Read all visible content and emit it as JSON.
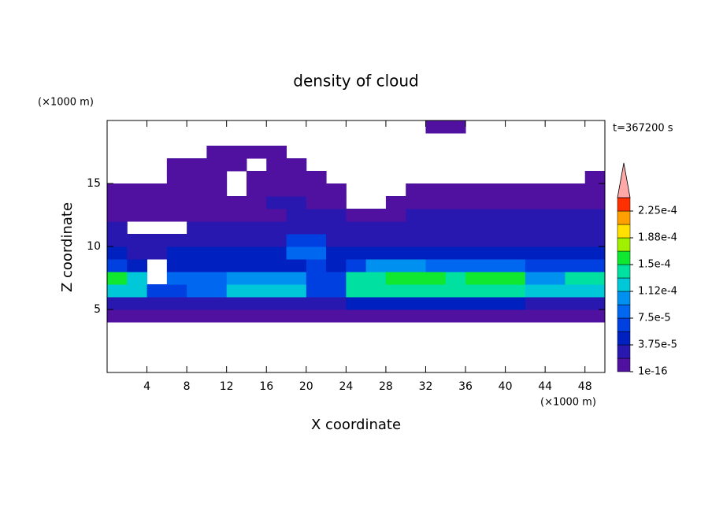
{
  "chart_data": {
    "type": "heatmap",
    "title": "density of cloud",
    "x_label": "X coordinate",
    "y_label": "Z coordinate",
    "x_unit": "(×1000 m)",
    "y_unit": "(×1000 m)",
    "time_label": "t=367200 s",
    "xlim": [
      0,
      50
    ],
    "ylim": [
      0,
      20
    ],
    "xticks": [
      4,
      8,
      12,
      16,
      20,
      24,
      28,
      32,
      36,
      40,
      44,
      48
    ],
    "yticks": [
      5,
      10,
      15
    ],
    "x": [
      1,
      3,
      5,
      7,
      9,
      11,
      13,
      15,
      17,
      19,
      21,
      23,
      25,
      27,
      29,
      31,
      33,
      35,
      37,
      39,
      41,
      43,
      45,
      47,
      49
    ],
    "y": [
      4.5,
      5.5,
      6.5,
      7.5,
      8.5,
      9.5,
      10.5,
      11.5,
      12.5,
      13.5,
      14.5,
      15.5,
      16.5,
      17.5,
      18.5,
      19.5
    ],
    "z": [
      [
        1e-05,
        1e-05,
        1e-05,
        1e-05,
        1e-05,
        1e-05,
        1e-05,
        1e-05,
        1e-05,
        1e-05,
        1e-05,
        1e-05,
        1e-05,
        1e-05,
        1e-05,
        1e-05,
        1e-05,
        1e-05,
        1e-05,
        1e-05,
        1e-05,
        1e-05,
        1e-05,
        1e-05,
        1e-05
      ],
      [
        3e-05,
        3e-05,
        3e-05,
        3e-05,
        3e-05,
        3e-05,
        3e-05,
        3e-05,
        3e-05,
        3e-05,
        2e-05,
        2e-05,
        4e-05,
        4e-05,
        4e-05,
        4e-05,
        4e-05,
        4e-05,
        4e-05,
        4e-05,
        4e-05,
        3e-05,
        3e-05,
        3e-05,
        3e-05
      ],
      [
        0.00012,
        0.00012,
        6e-05,
        6e-05,
        9e-05,
        9e-05,
        0.00013,
        0.00013,
        0.00013,
        0.00013,
        6e-05,
        6e-05,
        0.00014,
        0.00014,
        0.00014,
        0.00014,
        0.00014,
        0.00014,
        0.00014,
        0.00014,
        0.00014,
        0.00013,
        0.00013,
        0.00013,
        0.00013
      ],
      [
        0.00015,
        0.00012,
        null,
        9e-05,
        8e-05,
        8e-05,
        0.00011,
        0.00011,
        0.00011,
        0.00011,
        7e-05,
        7e-05,
        0.00014,
        0.00014,
        0.000165,
        0.000165,
        0.000165,
        0.00014,
        0.000155,
        0.000155,
        0.000155,
        0.00011,
        0.00011,
        0.00014,
        0.00014
      ],
      [
        6e-05,
        5e-05,
        null,
        5e-05,
        5e-05,
        5e-05,
        5e-05,
        5e-05,
        5e-05,
        5e-05,
        7e-05,
        5e-05,
        7e-05,
        0.00011,
        0.00011,
        0.00011,
        8e-05,
        8e-05,
        9e-05,
        9e-05,
        9e-05,
        6e-05,
        6e-05,
        7e-05,
        7e-05
      ],
      [
        4e-05,
        3e-05,
        3e-05,
        4e-05,
        4e-05,
        4e-05,
        4e-05,
        4e-05,
        4e-05,
        8e-05,
        8e-05,
        4e-05,
        4e-05,
        4e-05,
        4e-05,
        4e-05,
        4e-05,
        4e-05,
        4e-05,
        4e-05,
        4e-05,
        4e-05,
        4e-05,
        4e-05,
        4e-05
      ],
      [
        3e-05,
        3e-05,
        3e-05,
        3e-05,
        3e-05,
        3e-05,
        3e-05,
        3e-05,
        3e-05,
        6e-05,
        6e-05,
        3e-05,
        3e-05,
        3e-05,
        3e-05,
        3e-05,
        3e-05,
        3e-05,
        3e-05,
        3e-05,
        3e-05,
        3e-05,
        3e-05,
        3e-05,
        3e-05
      ],
      [
        2e-05,
        null,
        null,
        null,
        2e-05,
        2e-05,
        2e-05,
        2e-05,
        2e-05,
        3e-05,
        3e-05,
        2e-05,
        2e-05,
        2e-05,
        2e-05,
        2e-05,
        2e-05,
        2e-05,
        2e-05,
        2e-05,
        2e-05,
        2e-05,
        2e-05,
        2e-05,
        2e-05
      ],
      [
        1e-05,
        1e-05,
        1e-05,
        1e-05,
        1e-05,
        1e-05,
        1e-05,
        1e-05,
        1e-05,
        2.5e-05,
        2.5e-05,
        2.5e-05,
        1e-05,
        1e-05,
        1e-05,
        2.5e-05,
        2.5e-05,
        2.5e-05,
        2.5e-05,
        2.5e-05,
        2.5e-05,
        2.5e-05,
        2.5e-05,
        2.5e-05,
        2.5e-05
      ],
      [
        1e-05,
        1e-05,
        1e-05,
        1e-05,
        1e-05,
        1e-05,
        1e-05,
        1e-05,
        2e-05,
        2e-05,
        1e-05,
        1e-05,
        null,
        null,
        1e-05,
        1e-05,
        1e-05,
        1e-05,
        1e-05,
        1e-05,
        1e-05,
        1e-05,
        1e-05,
        1e-05,
        1e-05
      ],
      [
        1e-05,
        1e-05,
        1e-05,
        1e-05,
        1e-05,
        1e-05,
        null,
        1e-05,
        1e-05,
        1e-05,
        1e-05,
        1e-05,
        null,
        null,
        null,
        1e-05,
        1e-05,
        1e-05,
        1e-05,
        1e-05,
        1e-05,
        1e-05,
        1e-05,
        1e-05,
        1e-05
      ],
      [
        null,
        null,
        null,
        1e-05,
        1e-05,
        1e-05,
        null,
        1e-05,
        1e-05,
        1e-05,
        1e-05,
        null,
        null,
        null,
        null,
        null,
        null,
        null,
        null,
        null,
        null,
        null,
        null,
        null,
        1e-05
      ],
      [
        null,
        null,
        null,
        1e-05,
        1e-05,
        1e-05,
        1e-05,
        null,
        1e-05,
        1e-05,
        null,
        null,
        null,
        null,
        null,
        null,
        null,
        null,
        null,
        null,
        null,
        null,
        null,
        null,
        null
      ],
      [
        null,
        null,
        null,
        null,
        null,
        1e-05,
        1e-05,
        1e-05,
        1e-05,
        null,
        null,
        null,
        null,
        null,
        null,
        null,
        null,
        null,
        null,
        null,
        null,
        null,
        null,
        null,
        null
      ],
      [
        null,
        null,
        null,
        null,
        null,
        null,
        null,
        null,
        null,
        null,
        null,
        null,
        null,
        null,
        null,
        null,
        null,
        null,
        null,
        null,
        null,
        null,
        null,
        null,
        null
      ],
      [
        null,
        null,
        null,
        null,
        null,
        null,
        null,
        null,
        null,
        null,
        null,
        null,
        null,
        null,
        null,
        null,
        1e-05,
        1e-05,
        null,
        null,
        null,
        null,
        null,
        null,
        null
      ]
    ],
    "levels": [
      1e-16,
      1.875e-05,
      3.75e-05,
      5.625e-05,
      7.5e-05,
      9.375e-05,
      0.0001125,
      0.00013125,
      0.00015,
      0.00016875,
      0.0001875,
      0.00020625,
      0.000225,
      0.00024375
    ],
    "colors": [
      "#5010a0",
      "#2818b0",
      "#0020c0",
      "#0040e0",
      "#0068f0",
      "#0090f0",
      "#00c8d8",
      "#00e0a0",
      "#10e830",
      "#a0f000",
      "#ffe000",
      "#ffa000",
      "#ff3000"
    ],
    "extend_color": "#ffa8a8",
    "colorbar_ticks": [
      {
        "value": 1e-16,
        "label": "1e-16"
      },
      {
        "value": 3.75e-05,
        "label": "3.75e-5"
      },
      {
        "value": 7.5e-05,
        "label": "7.5e-5"
      },
      {
        "value": 0.0001125,
        "label": "1.12e-4"
      },
      {
        "value": 0.00015,
        "label": "1.5e-4"
      },
      {
        "value": 0.0001875,
        "label": "1.88e-4"
      },
      {
        "value": 0.000225,
        "label": "2.25e-4"
      }
    ]
  }
}
